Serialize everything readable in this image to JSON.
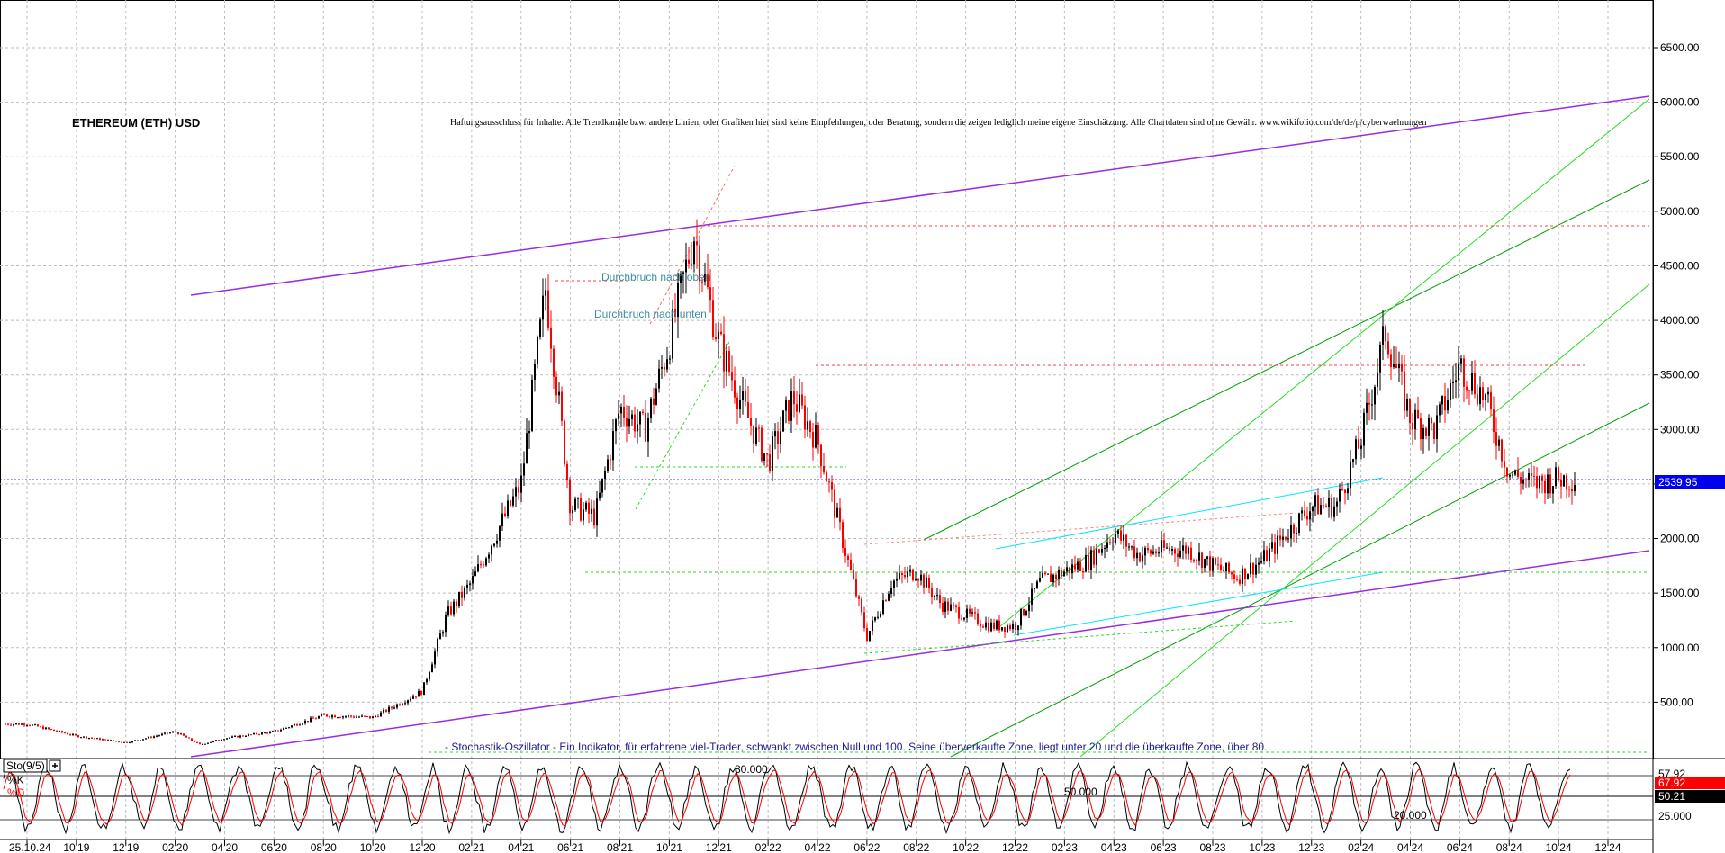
{
  "title": "ETHEREUM (ETH) USD",
  "disclaimer": "Haftungsausschluss für Inhalte: Alle Trendkanäle bzw. andere Linien, oder Grafiken hier sind keine Empfehlungen, oder Beratung, sondern die zeigen lediglich meine eigene Einschätzung. Alle Chartdaten sind ohne Gewähr.  www.wikifolio.com/de/de/p/cyberwaehrungen",
  "annotations": {
    "breakout_up": "Durchbruch nach oben",
    "breakout_down": "Durchbruch nach unten",
    "stochastic_note": "- Stochastik-Oszillator - Ein Indikator, für erfahrene viel-Trader, schwankt zwischen Null und 100. Seine überverkaufte Zone, liegt unter 20 und die überkaufte Zone, über 80."
  },
  "price_label": "2539.95",
  "stochastic": {
    "label": "Sto(9/5)",
    "add_icon": "plus-box-icon",
    "k_label": "%K",
    "d_label": "%D",
    "k_value": "67.92",
    "d_value": "50.21",
    "level_80": "80.000",
    "level_50": "50.000",
    "level_20": "20.000",
    "axis_25": "25.000",
    "axis_57": "57.92"
  },
  "colors": {
    "price_up": "#000000",
    "price_down": "#ff0000",
    "channel": "#9a2be2",
    "trend_green": "#00a000",
    "light_green": "#22dd22",
    "cyan": "#00e5ff",
    "price_line": "#0000cc",
    "k_line": "#000000",
    "d_line": "#ff0000"
  },
  "chart_data": {
    "type": "line",
    "title": "ETHEREUM (ETH) USD",
    "xlabel": "",
    "ylabel": "",
    "x_tick_labels": [
      "25.10.24",
      "10'19",
      "12'19",
      "02'20",
      "04'20",
      "06'20",
      "08'20",
      "10'20",
      "12'20",
      "02'21",
      "04'21",
      "06'21",
      "08'21",
      "10'21",
      "12'21",
      "02'22",
      "04'22",
      "06'22",
      "08'22",
      "10'22",
      "12'22",
      "02'23",
      "04'23",
      "06'23",
      "08'23",
      "10'23",
      "12'23",
      "02'24",
      "04'24",
      "06'24",
      "08'24",
      "10'24",
      "12'24"
    ],
    "y_ticks": [
      500,
      1000,
      1500,
      2000,
      2500,
      3000,
      3500,
      4000,
      4500,
      5000,
      5500,
      6000,
      6500
    ],
    "ylim": [
      0,
      6800
    ],
    "last_price": 2539.95,
    "series": [
      {
        "name": "",
        "x": [
          "08'19",
          "10'19",
          "12'19",
          "02'20",
          "03'20",
          "04'20",
          "06'20",
          "08'20",
          "10'20",
          "12'20",
          "01'21",
          "02'21",
          "04'21",
          "05'21",
          "06'21",
          "07'21",
          "08'21",
          "09'21",
          "10'21",
          "11'21",
          "12'21",
          "01'22",
          "02'22",
          "03'22",
          "04'22",
          "05'22",
          "06'22",
          "07'22",
          "08'22",
          "09'22",
          "10'22",
          "11'22",
          "12'22",
          "01'23",
          "02'23",
          "03'23",
          "04'23",
          "05'23",
          "06'23",
          "07'23",
          "08'23",
          "09'23",
          "10'23",
          "11'23",
          "12'23",
          "01'24",
          "02'24",
          "03'24",
          "04'24",
          "05'24",
          "06'24",
          "07'24",
          "08'24",
          "09'24",
          "10'24",
          "11'24"
        ],
        "values": [
          300,
          190,
          130,
          230,
          110,
          170,
          230,
          380,
          360,
          600,
          1300,
          1600,
          2500,
          4300,
          2300,
          2200,
          3200,
          3000,
          3800,
          4800,
          3800,
          3200,
          2700,
          3300,
          2900,
          2000,
          1100,
          1600,
          1700,
          1400,
          1300,
          1200,
          1200,
          1600,
          1700,
          1800,
          2050,
          1850,
          1900,
          1900,
          1750,
          1650,
          1800,
          2050,
          2300,
          2300,
          2900,
          3900,
          3100,
          3000,
          3600,
          3300,
          2600,
          2500,
          2550,
          2540
        ]
      }
    ],
    "stochastic_levels": [
      20,
      50,
      80
    ]
  }
}
